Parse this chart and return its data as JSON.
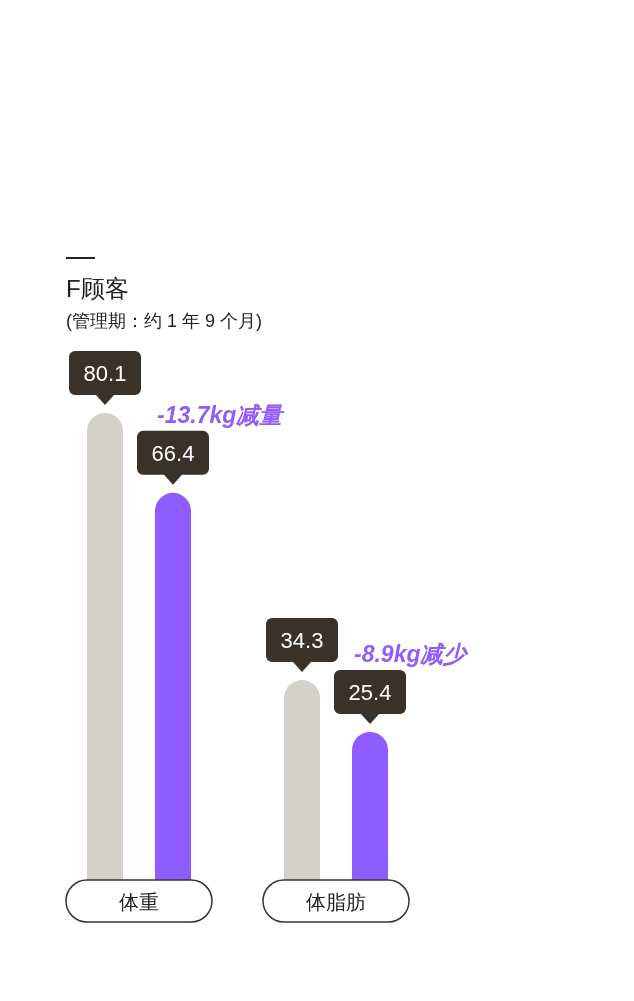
{
  "chart_data": {
    "type": "bar",
    "title": "F顾客",
    "subtitle": "(管理期：约 1 年 9 个月)",
    "categories": [
      "体重",
      "体脂肪"
    ],
    "series": [
      {
        "color": "#d4d0cc",
        "values": [
          80.1,
          34.3
        ]
      },
      {
        "color": "#8f5cff",
        "values": [
          66.4,
          25.4
        ]
      }
    ],
    "data_labels": true,
    "annotations": [
      "-13.7kg减量",
      "-8.9kg减少"
    ]
  }
}
